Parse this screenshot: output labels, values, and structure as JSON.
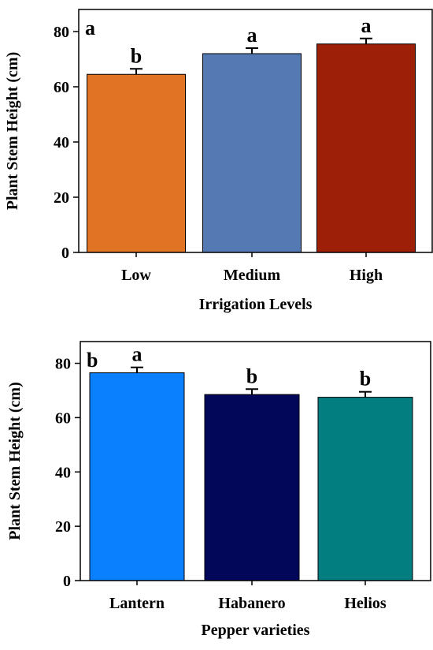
{
  "chart_data": [
    {
      "type": "bar",
      "panel_label": "a",
      "categories": [
        "Low",
        "Medium",
        "High"
      ],
      "values": [
        64.5,
        72.0,
        75.5
      ],
      "errors": [
        2.0,
        2.0,
        2.0
      ],
      "significance_letters": [
        "b",
        "a",
        "a"
      ],
      "colors": [
        "#E07324",
        "#5479B3",
        "#9E1F08"
      ],
      "xlabel": "Irrigation Levels",
      "ylabel": "Plant Stem Height (cm)",
      "ylim": [
        0,
        88
      ],
      "yticks": [
        0,
        20,
        40,
        60,
        80
      ],
      "grid": false
    },
    {
      "type": "bar",
      "panel_label": "b",
      "categories": [
        "Lantern",
        "Habanero",
        "Helios"
      ],
      "values": [
        76.5,
        68.5,
        67.5
      ],
      "errors": [
        2.0,
        2.0,
        2.0
      ],
      "significance_letters": [
        "a",
        "b",
        "b"
      ],
      "colors": [
        "#0A80FF",
        "#02075A",
        "#027D80"
      ],
      "xlabel": "Pepper varieties",
      "ylabel": "Plant Stem Height (cm)",
      "ylim": [
        0,
        88
      ],
      "yticks": [
        0,
        20,
        40,
        60,
        80
      ],
      "grid": false
    }
  ]
}
